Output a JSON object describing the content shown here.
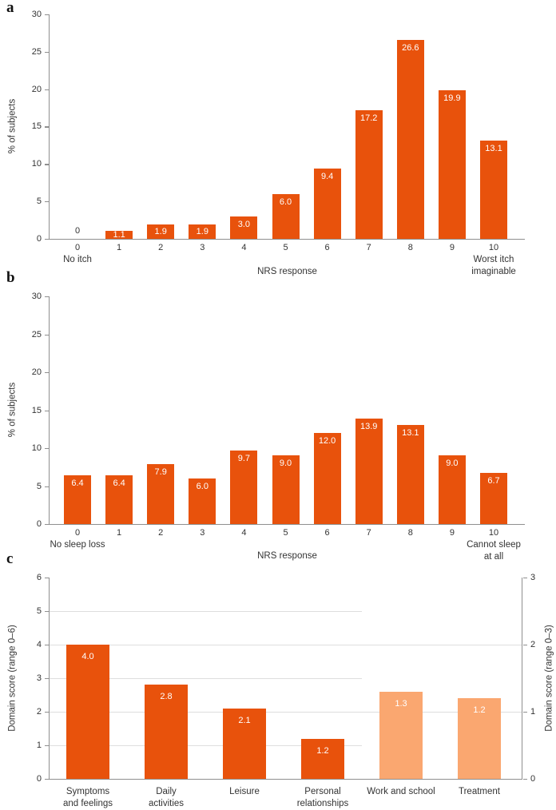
{
  "figure_caption_letters": [
    "a",
    "b",
    "c"
  ],
  "colors": {
    "bar_dark": "#e8520c",
    "bar_light": "#faa770",
    "axis": "#8f8f8f",
    "gridline": "#dedede",
    "text": "#333333",
    "value_text": "#ffffff"
  },
  "chart_data": [
    {
      "type": "bar",
      "panel": "a",
      "ylabel": "% of subjects",
      "xlabel": "NRS response",
      "ylim": [
        0,
        30
      ],
      "yticks": [
        0,
        5,
        10,
        15,
        20,
        25,
        30
      ],
      "categories": [
        "0",
        "1",
        "2",
        "3",
        "4",
        "5",
        "6",
        "7",
        "8",
        "9",
        "10"
      ],
      "values": [
        0,
        1.1,
        1.9,
        1.9,
        3.0,
        6.0,
        9.4,
        17.2,
        26.6,
        19.9,
        13.1
      ],
      "value_labels": [
        "0",
        "1.1",
        "1.9",
        "1.9",
        "3.0",
        "6.0",
        "9.4",
        "17.2",
        "26.6",
        "19.9",
        "13.1"
      ],
      "anchor_low": [
        "No itch"
      ],
      "anchor_high": [
        "Worst itch",
        "imaginable"
      ],
      "grid": false,
      "legend": null
    },
    {
      "type": "bar",
      "panel": "b",
      "ylabel": "% of subjects",
      "xlabel": "NRS response",
      "ylim": [
        0,
        30
      ],
      "yticks": [
        0,
        5,
        10,
        15,
        20,
        25,
        30
      ],
      "categories": [
        "0",
        "1",
        "2",
        "3",
        "4",
        "5",
        "6",
        "7",
        "8",
        "9",
        "10"
      ],
      "values": [
        6.4,
        6.4,
        7.9,
        6.0,
        9.7,
        9.0,
        12.0,
        13.9,
        13.1,
        9.0,
        6.7
      ],
      "value_labels": [
        "6.4",
        "6.4",
        "7.9",
        "6.0",
        "9.7",
        "9.0",
        "12.0",
        "13.9",
        "13.1",
        "9.0",
        "6.7"
      ],
      "anchor_low": [
        "No sleep loss"
      ],
      "anchor_high": [
        "Cannot sleep",
        "at all"
      ],
      "grid": false,
      "legend": null
    },
    {
      "type": "bar",
      "panel": "c",
      "left_ylabel": "Domain score (range 0–6)",
      "right_ylabel": "Domain score (range 0–3)",
      "left_ylim": [
        0,
        6
      ],
      "right_ylim": [
        0,
        3
      ],
      "left_yticks": [
        0,
        1,
        2,
        3,
        4,
        5,
        6
      ],
      "right_yticks": [
        0,
        1,
        2,
        3
      ],
      "categories": [
        [
          "Symptoms",
          "and feelings"
        ],
        [
          "Daily",
          "activities"
        ],
        [
          "Leisure"
        ],
        [
          "Personal",
          "relationships"
        ],
        [
          "Work and school"
        ],
        [
          "Treatment"
        ]
      ],
      "values": [
        4.0,
        2.8,
        2.1,
        1.2,
        1.3,
        1.2
      ],
      "value_labels": [
        "4.0",
        "2.8",
        "2.1",
        "1.2",
        "1.3",
        "1.2"
      ],
      "value_axis": [
        "left",
        "left",
        "left",
        "left",
        "right",
        "right"
      ],
      "bar_palette": [
        "dark",
        "dark",
        "dark",
        "dark",
        "light",
        "light"
      ],
      "gridline_values_left_scale": [
        1,
        2,
        3,
        4,
        5
      ],
      "grid": true,
      "legend": null
    }
  ]
}
